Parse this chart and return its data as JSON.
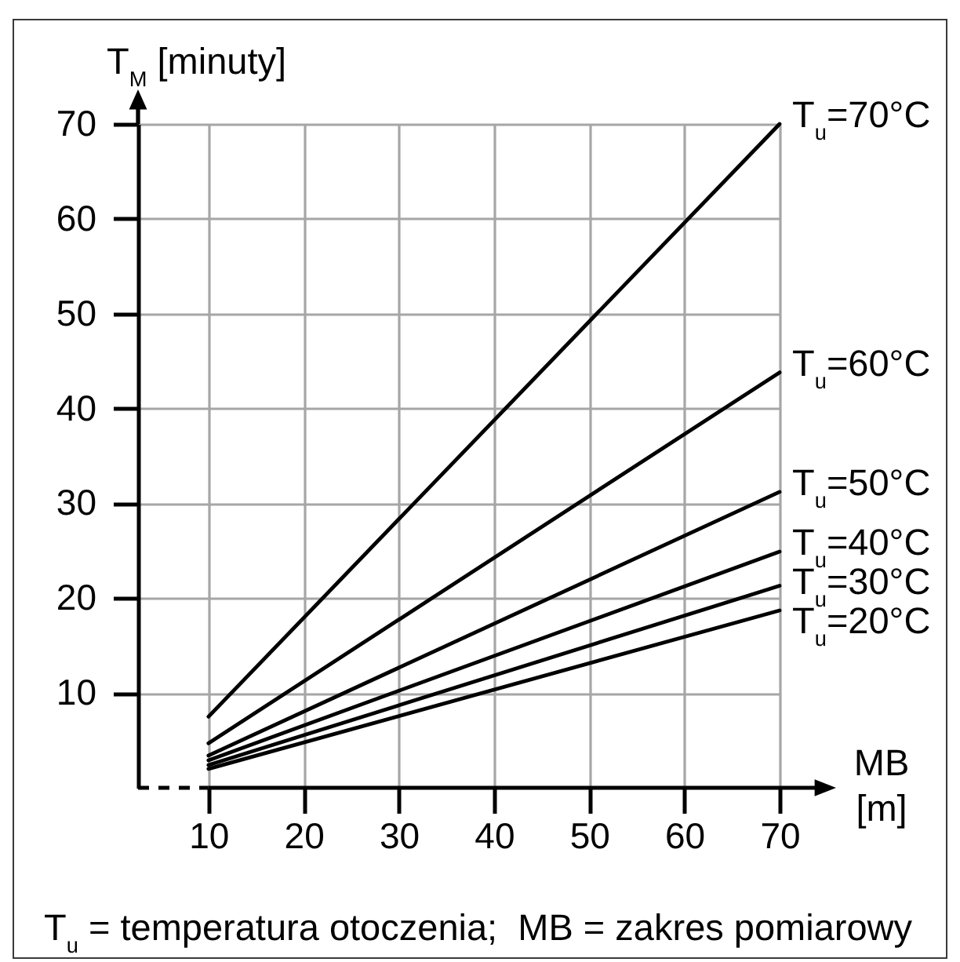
{
  "chart_data": {
    "type": "line",
    "ylabel": "T$_{M}$ [minuty]",
    "xlabel": "MB [m]",
    "x": [
      10,
      70
    ],
    "series": [
      {
        "name": "T$_{u}$=70°C",
        "color": "#000000",
        "values": [
          7.5,
          70
        ]
      },
      {
        "name": "T$_{u}$=60°C",
        "color": "#000000",
        "values": [
          4.7,
          43.8
        ]
      },
      {
        "name": "T$_{u}$=50°C",
        "color": "#000000",
        "values": [
          3.4,
          31.2
        ]
      },
      {
        "name": "T$_{u}$=40°C",
        "color": "#000000",
        "values": [
          2.9,
          24.9
        ]
      },
      {
        "name": "T$_{u}$=30°C",
        "color": "#000000",
        "values": [
          2.4,
          21.3
        ]
      },
      {
        "name": "T$_{u}$=20°C",
        "color": "#000000",
        "values": [
          2.0,
          18.7
        ]
      }
    ],
    "xlim": [
      2.6,
      70
    ],
    "ylim": [
      0,
      70
    ],
    "xticks": [
      10,
      20,
      30,
      40,
      50,
      60,
      70
    ],
    "yticks": [
      10,
      20,
      30,
      40,
      50,
      60,
      70
    ],
    "grid": true,
    "line_style": "solid",
    "annotations": [
      "T$_{u}$ = temperatura otoczenia;  MB = zakres pomiarowy"
    ]
  }
}
